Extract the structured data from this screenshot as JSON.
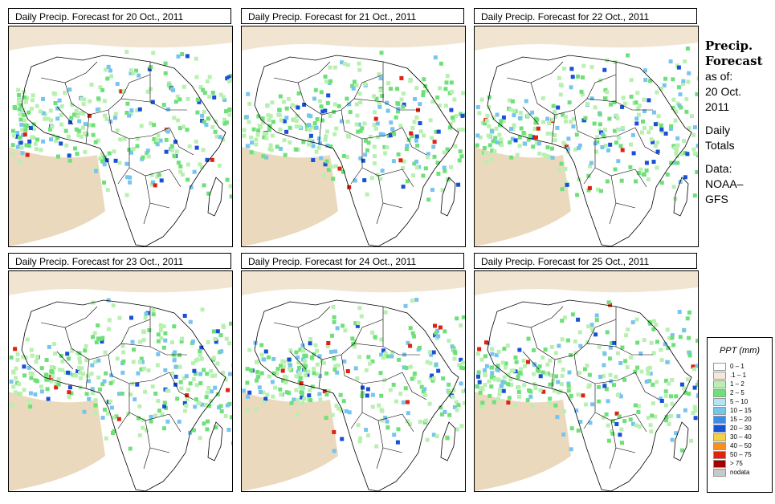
{
  "panels": [
    {
      "title": "Daily Precip. Forecast for  20 Oct., 2011"
    },
    {
      "title": "Daily Precip. Forecast for  21 Oct., 2011"
    },
    {
      "title": "Daily Precip. Forecast for  22 Oct., 2011"
    },
    {
      "title": "Daily Precip. Forecast for  23 Oct., 2011"
    },
    {
      "title": "Daily Precip. Forecast for  24 Oct., 2011"
    },
    {
      "title": "Daily Precip. Forecast for  25 Oct., 2011"
    }
  ],
  "sidebar": {
    "heading_line1": "Precip.",
    "heading_line2": "Forecast",
    "asof_line1": "as of:",
    "asof_line2": "20 Oct.",
    "asof_line3": "2011",
    "type_line1": "Daily",
    "type_line2": "Totals",
    "source_line1": "Data:",
    "source_line2": "NOAA–",
    "source_line3": "GFS"
  },
  "legend": {
    "title": "PPT (mm)",
    "items": [
      {
        "label": "0 – 1",
        "color": "#ffffff"
      },
      {
        "label": ".1 – 1",
        "color": "#f4e8d8"
      },
      {
        "label": "1 – 2",
        "color": "#b8f0b0"
      },
      {
        "label": "2 – 5",
        "color": "#6ee078"
      },
      {
        "label": "5 – 10",
        "color": "#b4e4f4"
      },
      {
        "label": "10 – 15",
        "color": "#78c4f0"
      },
      {
        "label": "15 – 20",
        "color": "#3c8ce8"
      },
      {
        "label": "20 – 30",
        "color": "#1850d8"
      },
      {
        "label": "30 – 40",
        "color": "#f8d048"
      },
      {
        "label": "40 – 50",
        "color": "#f89018"
      },
      {
        "label": "50 – 75",
        "color": "#e02010"
      },
      {
        "label": "> 75",
        "color": "#a00000"
      },
      {
        "label": "nodata",
        "color": "#c8c8c8"
      }
    ]
  },
  "colors": {
    "dry": "#e8d2b2",
    "light": "#b8f0b0",
    "moderate": "#6ee078",
    "wet": "#78c4f0",
    "heavy": "#1850d8",
    "extreme": "#e02010"
  }
}
